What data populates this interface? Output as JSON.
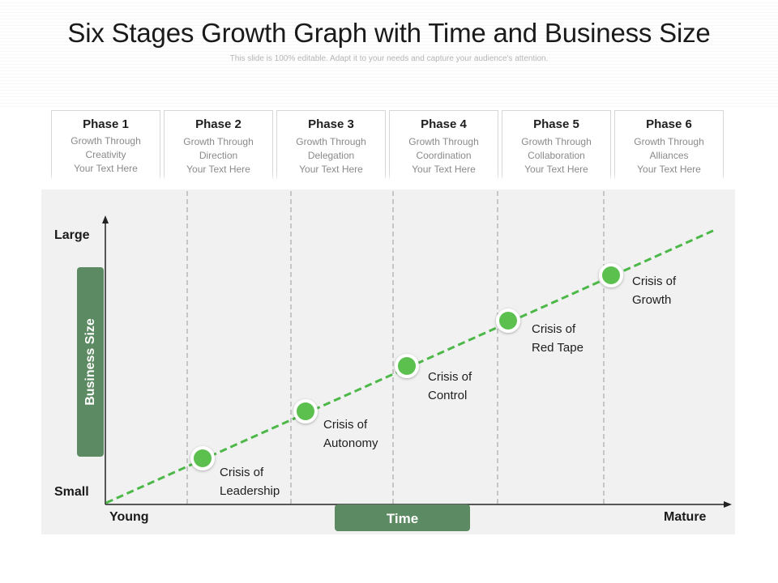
{
  "header": {
    "title": "Six Stages Growth Graph with Time and Business Size",
    "subtitle": "This slide is 100% editable. Adapt it to your needs and capture your audience's attention."
  },
  "phases": [
    {
      "name": "Phase 1",
      "line1": "Growth Through",
      "line2": "Creativity",
      "line3": "Your Text Here"
    },
    {
      "name": "Phase 2",
      "line1": "Growth Through",
      "line2": "Direction",
      "line3": "Your Text Here"
    },
    {
      "name": "Phase 3",
      "line1": "Growth Through",
      "line2": "Delegation",
      "line3": "Your Text Here"
    },
    {
      "name": "Phase 4",
      "line1": "Growth Through",
      "line2": "Coordination",
      "line3": "Your Text Here"
    },
    {
      "name": "Phase 5",
      "line1": "Growth Through",
      "line2": "Collaboration",
      "line3": "Your Text Here"
    },
    {
      "name": "Phase 6",
      "line1": "Growth Through",
      "line2": "Alliances",
      "line3": "Your Text Here"
    }
  ],
  "axes": {
    "y_top": "Large",
    "y_bottom": "Small",
    "y_title": "Business Size",
    "x_left": "Young",
    "x_right": "Mature",
    "x_title": "Time"
  },
  "crises": [
    {
      "line1": "Crisis of",
      "line2": "Leadership"
    },
    {
      "line1": "Crisis of",
      "line2": "Autonomy"
    },
    {
      "line1": "Crisis of",
      "line2": "Control"
    },
    {
      "line1": "Crisis of",
      "line2": "Red Tape"
    },
    {
      "line1": "Crisis of",
      "line2": "Growth"
    }
  ],
  "colors": {
    "accent_green": "#5c8a62",
    "line_green": "#4cb848",
    "marker_green": "#5cc04f",
    "plot_background": "#f1f1f1"
  }
}
